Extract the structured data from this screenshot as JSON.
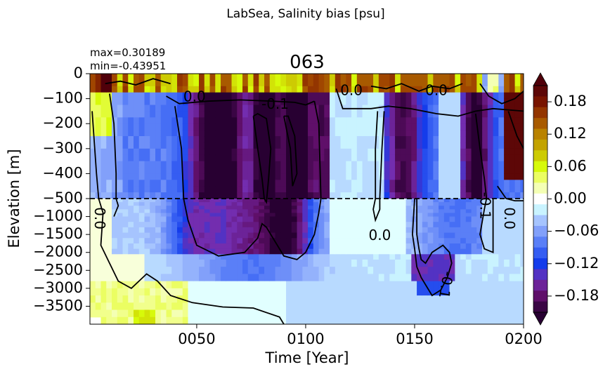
{
  "figure": {
    "suptitle": "LabSea, Salinity bias [psu]",
    "title": "063",
    "stat_max": "max=0.30189",
    "stat_min": "min=-0.43951"
  },
  "chart_data": {
    "type": "heatmap",
    "title": "063",
    "xlabel": "Time [Year]",
    "ylabel": "Elevation [m]",
    "xlim": [
      1,
      200
    ],
    "x_ticks": [
      {
        "value": 50,
        "label": "0050"
      },
      {
        "value": 100,
        "label": "0100"
      },
      {
        "value": 150,
        "label": "0150"
      },
      {
        "value": 200,
        "label": "0200"
      }
    ],
    "upper_panel": {
      "depth_range": [
        0,
        -500
      ],
      "ticks": [
        "0",
        "−100",
        "−200",
        "−300",
        "−400",
        "−500"
      ],
      "tick_values": [
        0,
        -100,
        -200,
        -300,
        -400,
        -500
      ]
    },
    "lower_panel": {
      "depth_range": [
        -500,
        -4000
      ],
      "ticks": [
        "−1000",
        "−1500",
        "−2000",
        "−2500",
        "−3000",
        "−3500"
      ],
      "tick_values": [
        -1000,
        -1500,
        -2000,
        -2500,
        -3000,
        -3500
      ]
    },
    "split_depth": -500,
    "colorbar": {
      "vmin": -0.21,
      "vmax": 0.21,
      "ticks": [
        {
          "value": 0.18,
          "label": "0.18"
        },
        {
          "value": 0.12,
          "label": "0.12"
        },
        {
          "value": 0.06,
          "label": "0.06"
        },
        {
          "value": 0.0,
          "label": "0.00"
        },
        {
          "value": -0.06,
          "label": "−0.06"
        },
        {
          "value": -0.12,
          "label": "−0.12"
        },
        {
          "value": -0.18,
          "label": "−0.18"
        }
      ],
      "extend": "both"
    },
    "contour_labels": [
      {
        "text": "0.0",
        "year": 49,
        "depth": -95
      },
      {
        "text": "-0.1",
        "year": 86,
        "depth": -125
      },
      {
        "text": "0.0",
        "year": 121,
        "depth": -70
      },
      {
        "text": "0.0",
        "year": 160,
        "depth": -70
      },
      {
        "text": "0.0",
        "year": 5,
        "depth": -1050
      },
      {
        "text": "0.0",
        "year": 134,
        "depth": -1550
      },
      {
        "text": "-0.1",
        "year": 182,
        "depth": -700
      },
      {
        "text": "0.0",
        "year": 193,
        "depth": -1050
      },
      {
        "text": "-0.1",
        "year": 164,
        "depth": -2900
      }
    ],
    "value_range": {
      "max": 0.30189,
      "min": -0.43951
    }
  }
}
